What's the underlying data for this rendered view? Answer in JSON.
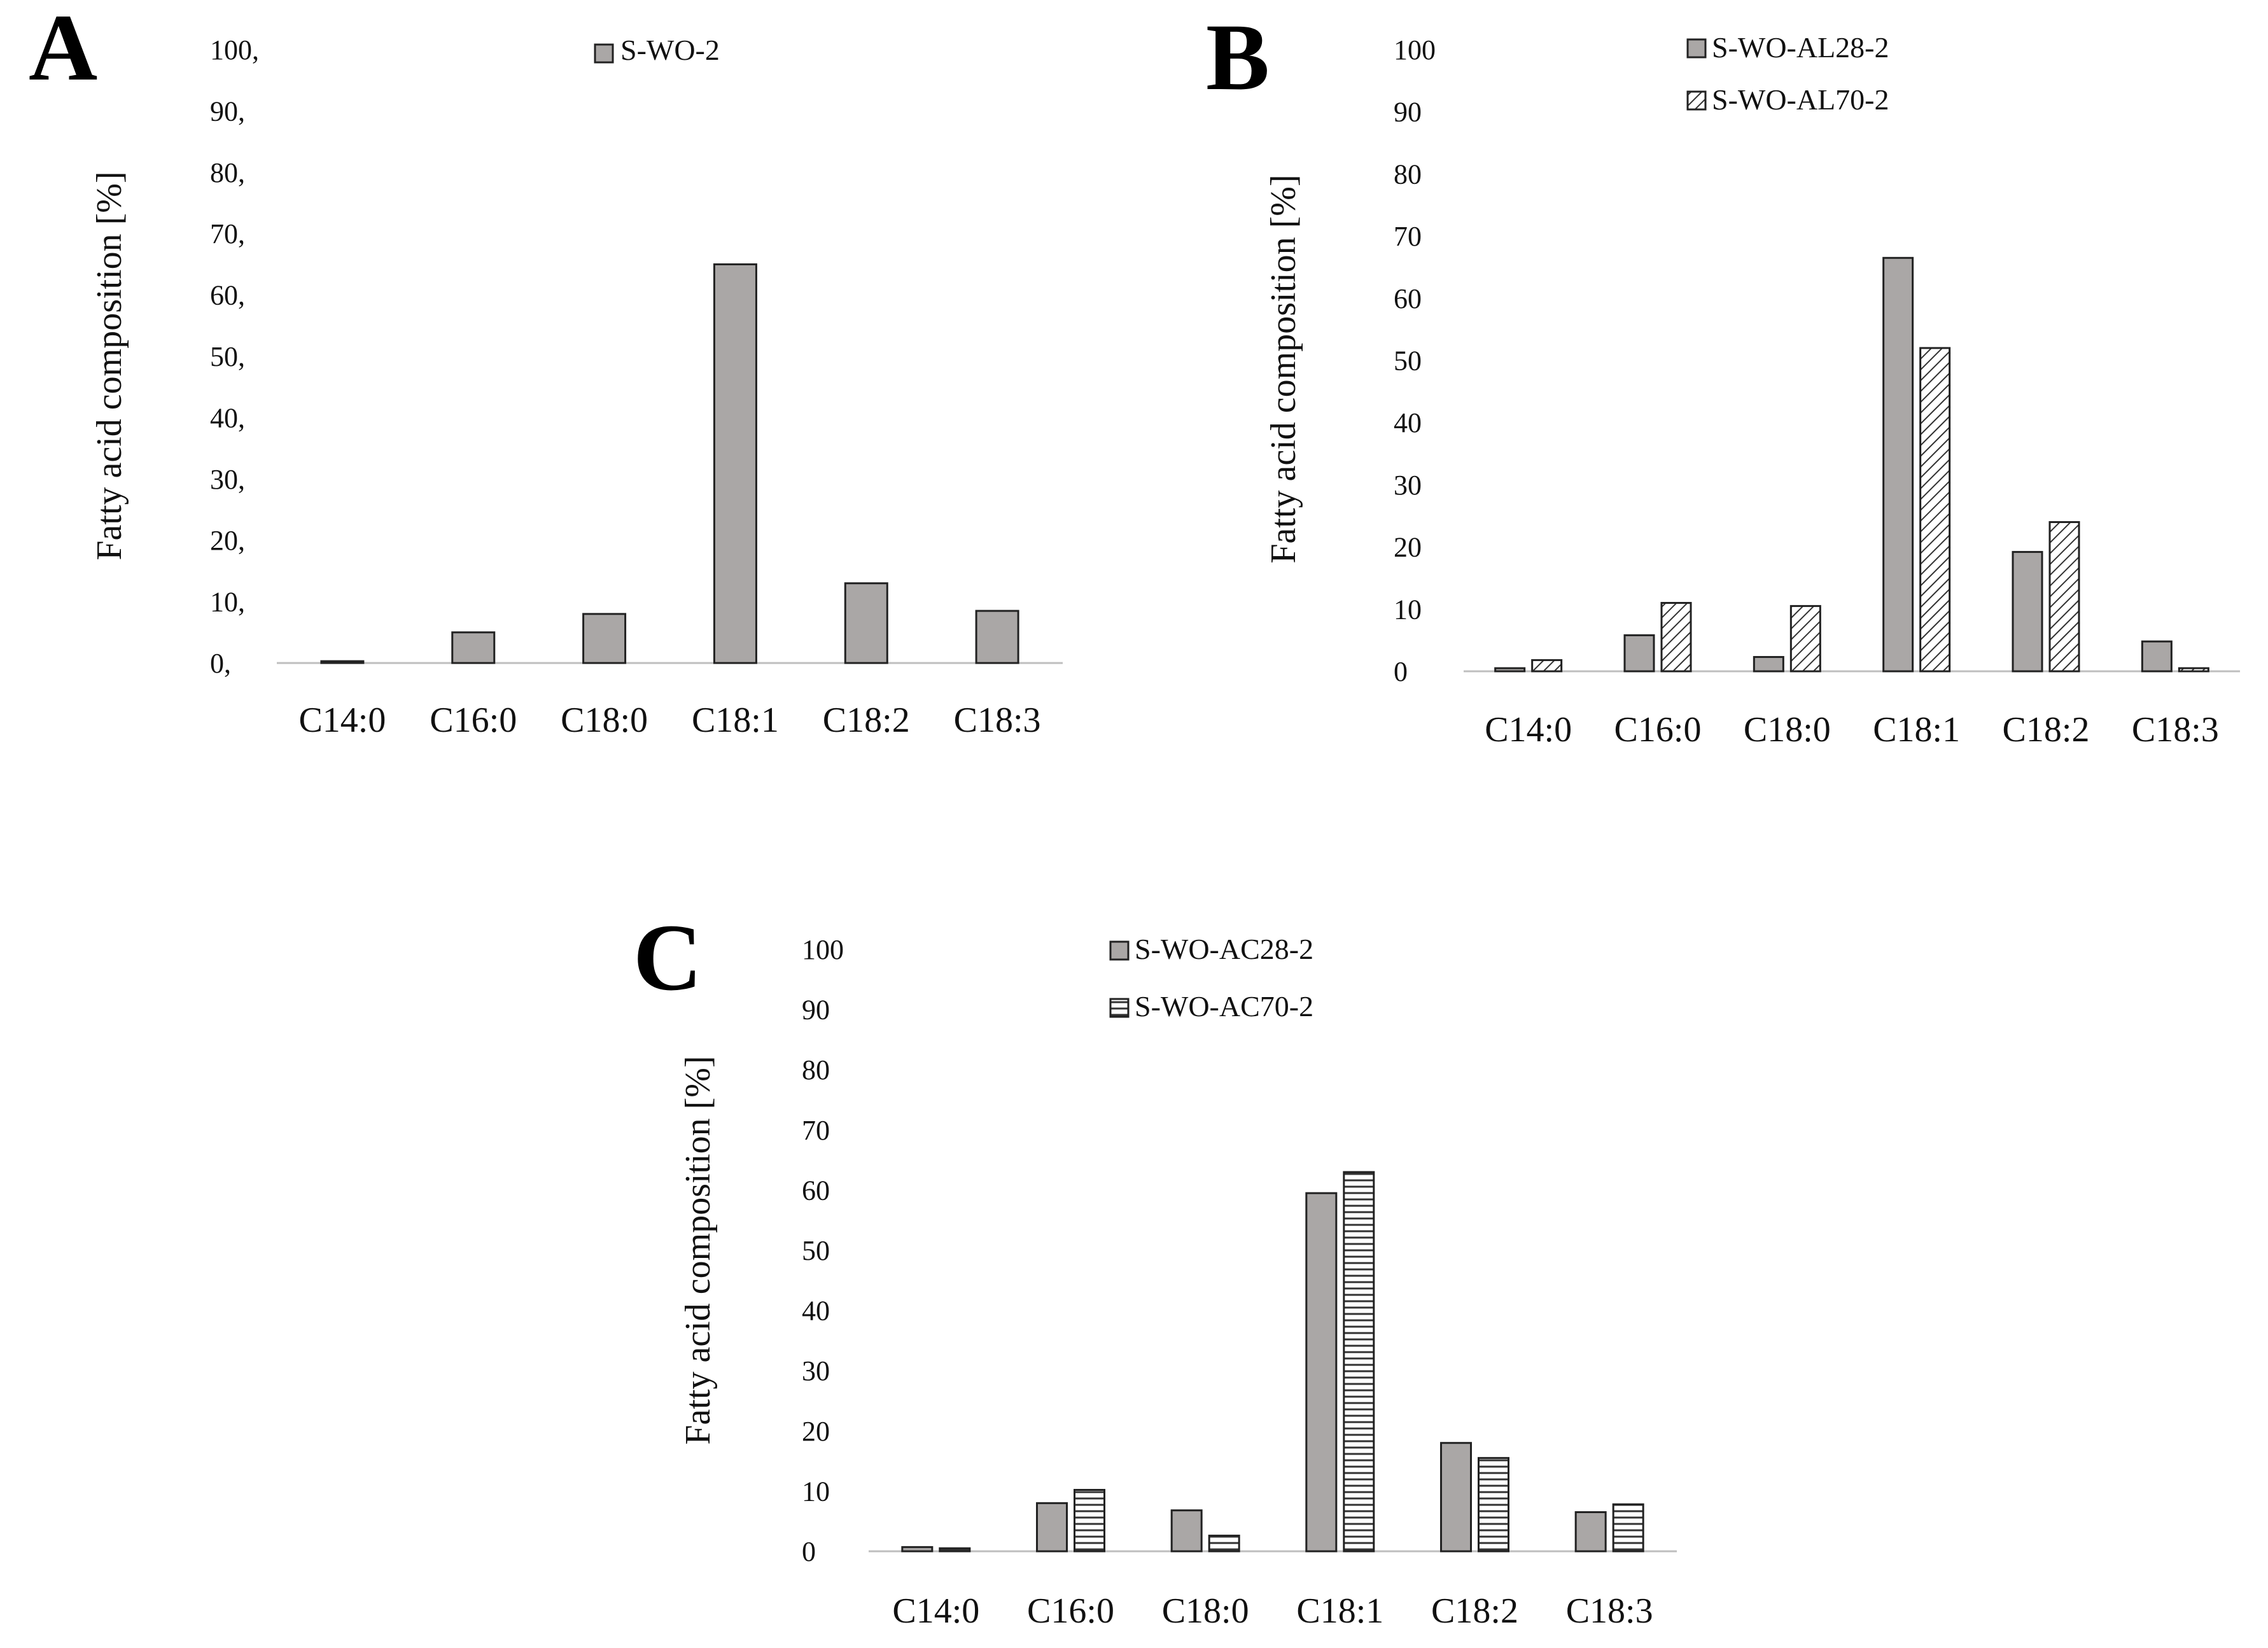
{
  "figure": {
    "panel_count": 3
  },
  "colors": {
    "bar_gray": "#aaa7a6",
    "bar_edge": "#222222",
    "axis": "#bfbfbf",
    "hatch": "#333333"
  },
  "chart_data": [
    {
      "panel": "A",
      "type": "bar",
      "categories": [
        "C14:0",
        "C16:0",
        "C18:0",
        "C18:1",
        "C18:2",
        "C18:3"
      ],
      "yticks": [
        "0,",
        "10,",
        "20,",
        "30,",
        "40,",
        "50,",
        "60,",
        "70,",
        "80,",
        "90,",
        "100,"
      ],
      "ylim": [
        0,
        100
      ],
      "xlabel": "",
      "ylabel": "Fatty acid composition [%]",
      "legend_position": "top-center",
      "series": [
        {
          "name": "S-WO-2",
          "pattern": "solid",
          "values": [
            0.3,
            5.0,
            8.0,
            65.0,
            13.0,
            8.5
          ]
        }
      ]
    },
    {
      "panel": "B",
      "type": "bar",
      "categories": [
        "C14:0",
        "C16:0",
        "C18:0",
        "C18:1",
        "C18:2",
        "C18:3"
      ],
      "yticks": [
        "0",
        "10",
        "20",
        "30",
        "40",
        "50",
        "60",
        "70",
        "80",
        "90",
        "100"
      ],
      "ylim": [
        0,
        100
      ],
      "xlabel": "",
      "ylabel": "Fatty acid composition [%]",
      "legend_position": "top-center",
      "series": [
        {
          "name": "S-WO-AL28-2",
          "pattern": "solid",
          "values": [
            0.5,
            5.8,
            2.3,
            66.5,
            19.2,
            4.8
          ]
        },
        {
          "name": "S-WO-AL70-2",
          "pattern": "diagonal",
          "values": [
            1.8,
            11.0,
            10.5,
            52.0,
            24.0,
            0.5
          ]
        }
      ]
    },
    {
      "panel": "C",
      "type": "bar",
      "categories": [
        "C14:0",
        "C16:0",
        "C18:0",
        "C18:1",
        "C18:2",
        "C18:3"
      ],
      "yticks": [
        "0",
        "10",
        "20",
        "30",
        "40",
        "50",
        "60",
        "70",
        "80",
        "90",
        "100"
      ],
      "ylim": [
        0,
        100
      ],
      "xlabel": "",
      "ylabel": "Fatty acid composition [%]",
      "legend_position": "top-center",
      "series": [
        {
          "name": "S-WO-AC28-2",
          "pattern": "solid",
          "values": [
            0.7,
            8.0,
            6.8,
            59.5,
            18.0,
            6.5
          ]
        },
        {
          "name": "S-WO-AC70-2",
          "pattern": "horizontal",
          "values": [
            0.5,
            10.2,
            2.6,
            63.0,
            15.5,
            7.8
          ]
        }
      ]
    }
  ]
}
